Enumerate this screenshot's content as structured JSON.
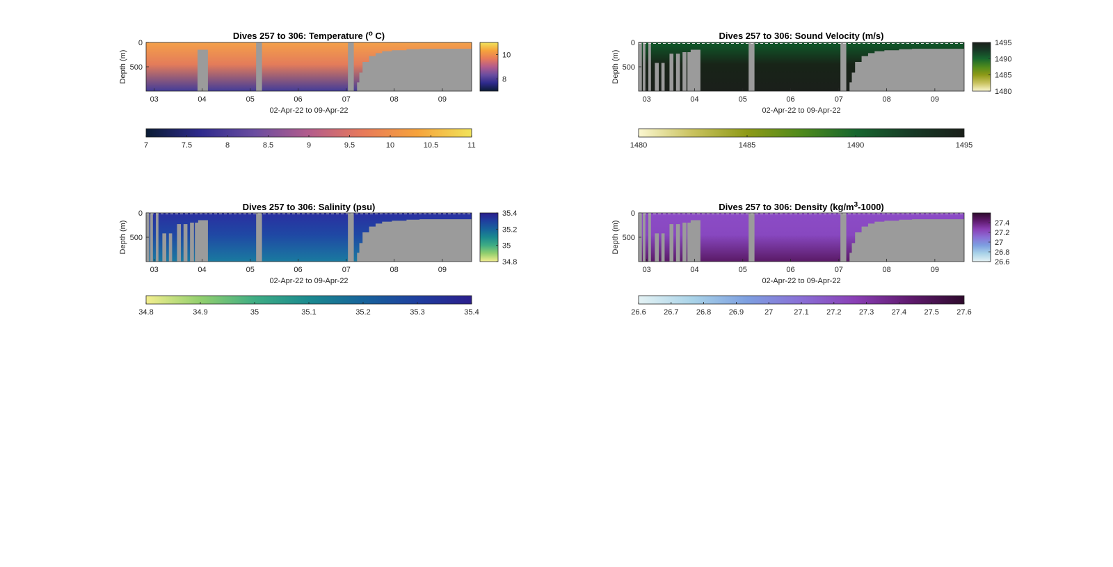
{
  "figure": {
    "panels": [
      {
        "id": "temperature",
        "title_main": "Dives 257 to 306: Temperature (",
        "title_sup": "o",
        "title_tail": " C)",
        "ylabel": "Depth (m)",
        "xlabel": "02-Apr-22 to 09-Apr-22",
        "yticks": [
          "0",
          "500"
        ],
        "xticks": [
          "03",
          "04",
          "05",
          "06",
          "07",
          "08",
          "09"
        ],
        "side_colorbar": {
          "ticks": [
            "10",
            "8"
          ],
          "tick_values": [
            10,
            8
          ],
          "range": [
            7,
            11
          ]
        },
        "bottom_colorbar": {
          "ticks": [
            "7",
            "7.5",
            "8",
            "8.5",
            "9",
            "9.5",
            "10",
            "10.5",
            "11"
          ],
          "range": [
            7,
            11
          ]
        },
        "colormap": [
          "#0b1c34",
          "#2e2a8c",
          "#6a4da0",
          "#b35c8c",
          "#e87a5a",
          "#f6a33c",
          "#f1e35a"
        ],
        "field": {
          "top_color": "#f4a049",
          "mid_color": "#e47c5a",
          "bottom_color": "#433c98",
          "dashed_surface": false
        },
        "no_data_color": "#9b9b9b"
      },
      {
        "id": "sound-velocity",
        "title_main": "Dives 257 to 306: Sound Velocity (m/s)",
        "title_sup": "",
        "title_tail": "",
        "ylabel": "Depth (m)",
        "xlabel": "02-Apr-22 to 09-Apr-22",
        "yticks": [
          "0",
          "500"
        ],
        "xticks": [
          "03",
          "04",
          "05",
          "06",
          "07",
          "08",
          "09"
        ],
        "side_colorbar": {
          "ticks": [
            "1495",
            "1490",
            "1485",
            "1480"
          ],
          "tick_values": [
            1495,
            1490,
            1485,
            1480
          ],
          "range": [
            1480,
            1495
          ]
        },
        "bottom_colorbar": {
          "ticks": [
            "1480",
            "1485",
            "1490",
            "1495"
          ],
          "range": [
            1480,
            1495
          ]
        },
        "colormap": [
          "#fbf7d0",
          "#c9c25e",
          "#8e9a17",
          "#4f8a1c",
          "#17662e",
          "#173b26",
          "#1a1f1a"
        ],
        "field": {
          "top_color": "#0f5a2a",
          "mid_color": "#182418",
          "bottom_color": "#1a1f1a",
          "dashed_surface": true
        },
        "no_data_color": "#9b9b9b"
      },
      {
        "id": "salinity",
        "title_main": "Dives 257 to 306: Salinity (psu)",
        "title_sup": "",
        "title_tail": "",
        "ylabel": "Depth (m)",
        "xlabel": "02-Apr-22 to 09-Apr-22",
        "yticks": [
          "0",
          "500"
        ],
        "xticks": [
          "03",
          "04",
          "05",
          "06",
          "07",
          "08",
          "09"
        ],
        "side_colorbar": {
          "ticks": [
            "35.4",
            "35.2",
            "35",
            "34.8"
          ],
          "tick_values": [
            35.4,
            35.2,
            35.0,
            34.8
          ],
          "range": [
            34.8,
            35.4
          ]
        },
        "bottom_colorbar": {
          "ticks": [
            "34.8",
            "34.9",
            "35",
            "35.1",
            "35.2",
            "35.3",
            "35.4"
          ],
          "range": [
            34.8,
            35.4
          ]
        },
        "colormap": [
          "#f3ee8f",
          "#92cf6e",
          "#3fad84",
          "#1b8a8f",
          "#17639b",
          "#1f3f9f",
          "#2b1e8c"
        ],
        "field": {
          "top_color": "#2a2fa0",
          "mid_color": "#1f48a4",
          "bottom_color": "#1a7aa0",
          "dashed_surface": true
        },
        "no_data_color": "#9b9b9b"
      },
      {
        "id": "density",
        "title_main": "Dives 257 to 306: Density (kg/m",
        "title_sup": "3",
        "title_tail": "-1000)",
        "ylabel": "Depth (m)",
        "xlabel": "02-Apr-22 to 09-Apr-22",
        "yticks": [
          "0",
          "500"
        ],
        "xticks": [
          "03",
          "04",
          "05",
          "06",
          "07",
          "08",
          "09"
        ],
        "side_colorbar": {
          "ticks": [
            "27.4",
            "27.2",
            "27",
            "26.8",
            "26.6"
          ],
          "tick_values": [
            27.4,
            27.2,
            27.0,
            26.8,
            26.6
          ],
          "range": [
            26.6,
            27.6
          ]
        },
        "bottom_colorbar": {
          "ticks": [
            "26.6",
            "26.7",
            "26.8",
            "26.9",
            "27",
            "27.1",
            "27.2",
            "27.3",
            "27.4",
            "27.5",
            "27.6"
          ],
          "range": [
            26.6,
            27.6
          ]
        },
        "colormap": [
          "#e4f2f4",
          "#a9d3e8",
          "#7d9fe0",
          "#8a6fd6",
          "#8a3fb5",
          "#5f1a6e",
          "#2e0a2c"
        ],
        "field": {
          "top_color": "#8c4cc6",
          "mid_color": "#8848c0",
          "bottom_color": "#5a1a66",
          "dashed_surface": true
        },
        "no_data_color": "#9b9b9b"
      }
    ]
  },
  "chart_data": [
    {
      "type": "heatmap",
      "title": "Dives 257 to 306: Temperature (o C)",
      "xlabel": "02-Apr-22 to 09-Apr-22",
      "ylabel": "Depth (m)",
      "x_tick_labels": [
        "03",
        "04",
        "05",
        "06",
        "07",
        "08",
        "09"
      ],
      "y_tick_labels": [
        "0",
        "500"
      ],
      "y_reversed": true,
      "color_range": [
        7,
        11
      ],
      "colorbar_ticks": [
        7,
        7.5,
        8,
        8.5,
        9,
        9.5,
        10,
        10.5,
        11
      ],
      "profile": {
        "depth": [
          0,
          250,
          500,
          750,
          950
        ],
        "value": [
          10.2,
          9.6,
          9.1,
          8.6,
          8.0
        ]
      },
      "gaps": [
        {
          "x_start": 3.95,
          "x_end": 4.3,
          "max_depth": 120
        },
        {
          "x_start": 5.15,
          "x_end": 5.25,
          "max_depth": 0
        },
        {
          "x_start": 7.0,
          "x_end": 7.1,
          "max_depth": 0
        },
        {
          "x_start": 7.2,
          "x_end": 9.6,
          "max_depth_start": 800,
          "max_depth_end": 150
        }
      ]
    },
    {
      "type": "heatmap",
      "title": "Dives 257 to 306: Sound Velocity (m/s)",
      "xlabel": "02-Apr-22 to 09-Apr-22",
      "ylabel": "Depth (m)",
      "x_tick_labels": [
        "03",
        "04",
        "05",
        "06",
        "07",
        "08",
        "09"
      ],
      "y_tick_labels": [
        "0",
        "500"
      ],
      "y_reversed": true,
      "color_range": [
        1480,
        1495
      ],
      "colorbar_ticks": [
        1480,
        1485,
        1490,
        1495
      ],
      "profile": {
        "depth": [
          0,
          100,
          300,
          600,
          950
        ],
        "value": [
          1491,
          1494,
          1495,
          1495,
          1495
        ]
      },
      "gaps": [
        {
          "x_start": 2.85,
          "x_end": 4.3,
          "pattern": "shallow profiles with vertical gaps"
        },
        {
          "x_start": 5.15,
          "x_end": 5.25,
          "max_depth": 0
        },
        {
          "x_start": 7.0,
          "x_end": 7.1,
          "max_depth": 0
        },
        {
          "x_start": 7.2,
          "x_end": 9.6,
          "max_depth_start": 800,
          "max_depth_end": 150
        }
      ]
    },
    {
      "type": "heatmap",
      "title": "Dives 257 to 306: Salinity (psu)",
      "xlabel": "02-Apr-22 to 09-Apr-22",
      "ylabel": "Depth (m)",
      "x_tick_labels": [
        "03",
        "04",
        "05",
        "06",
        "07",
        "08",
        "09"
      ],
      "y_tick_labels": [
        "0",
        "500"
      ],
      "y_reversed": true,
      "color_range": [
        34.8,
        35.4
      ],
      "colorbar_ticks": [
        34.8,
        34.9,
        35.0,
        35.1,
        35.2,
        35.3,
        35.4
      ],
      "profile": {
        "depth": [
          0,
          250,
          500,
          750,
          950
        ],
        "value": [
          35.38,
          35.35,
          35.3,
          35.25,
          35.2
        ]
      },
      "gaps": [
        {
          "x_start": 2.85,
          "x_end": 4.3,
          "pattern": "shallow profiles with vertical gaps"
        },
        {
          "x_start": 5.15,
          "x_end": 5.25,
          "max_depth": 0
        },
        {
          "x_start": 7.0,
          "x_end": 7.1,
          "max_depth": 0
        },
        {
          "x_start": 7.2,
          "x_end": 9.6,
          "max_depth_start": 800,
          "max_depth_end": 150
        }
      ]
    },
    {
      "type": "heatmap",
      "title": "Dives 257 to 306: Density (kg/m3-1000)",
      "xlabel": "02-Apr-22 to 09-Apr-22",
      "ylabel": "Depth (m)",
      "x_tick_labels": [
        "03",
        "04",
        "05",
        "06",
        "07",
        "08",
        "09"
      ],
      "y_tick_labels": [
        "0",
        "500"
      ],
      "y_reversed": true,
      "color_range": [
        26.6,
        27.6
      ],
      "colorbar_ticks": [
        26.6,
        26.7,
        26.8,
        26.9,
        27.0,
        27.1,
        27.2,
        27.3,
        27.4,
        27.5,
        27.6
      ],
      "profile": {
        "depth": [
          0,
          250,
          500,
          750,
          950
        ],
        "value": [
          27.15,
          27.2,
          27.25,
          27.3,
          27.45
        ]
      },
      "gaps": [
        {
          "x_start": 2.85,
          "x_end": 4.3,
          "pattern": "shallow profiles with vertical gaps"
        },
        {
          "x_start": 5.15,
          "x_end": 5.25,
          "max_depth": 0
        },
        {
          "x_start": 7.0,
          "x_end": 7.1,
          "max_depth": 0
        },
        {
          "x_start": 7.2,
          "x_end": 9.6,
          "max_depth_start": 800,
          "max_depth_end": 150
        }
      ]
    }
  ]
}
